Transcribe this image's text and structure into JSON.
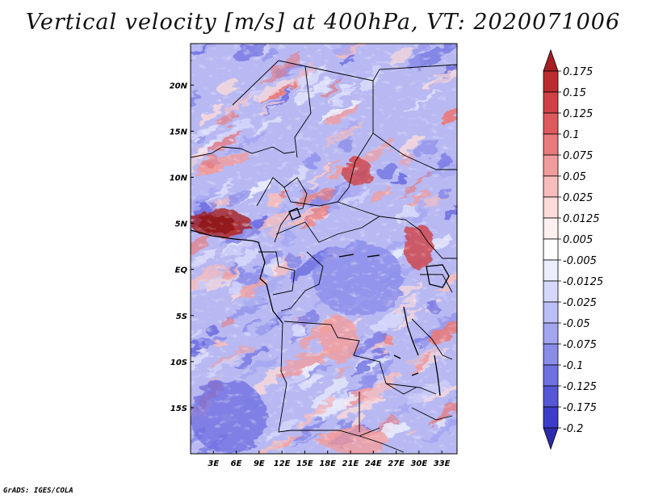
{
  "title": "Vertical velocity [m/s] at 400hPa, VT: 2020071006",
  "credit": "GrADS: IGES/COLA",
  "colors": {
    "positive": "#c0282c",
    "negative": "#3a36c8",
    "neutral": "#ffffff",
    "border": "#000000"
  },
  "chart_data": {
    "type": "heatmap",
    "title": "Vertical velocity [m/s] at 400hPa, VT: 2020071006",
    "units": "m/s",
    "level": "400hPa",
    "valid_time": "2020071006",
    "x_range_lon": [
      0,
      35
    ],
    "y_range_lat": [
      -20,
      24.5
    ],
    "x_ticks": [
      {
        "lon": 3,
        "label": "3E"
      },
      {
        "lon": 6,
        "label": "6E"
      },
      {
        "lon": 9,
        "label": "9E"
      },
      {
        "lon": 12,
        "label": "12E"
      },
      {
        "lon": 15,
        "label": "15E"
      },
      {
        "lon": 18,
        "label": "18E"
      },
      {
        "lon": 21,
        "label": "21E"
      },
      {
        "lon": 24,
        "label": "24E"
      },
      {
        "lon": 27,
        "label": "27E"
      },
      {
        "lon": 30,
        "label": "30E"
      },
      {
        "lon": 33,
        "label": "33E"
      }
    ],
    "y_ticks": [
      {
        "lat": 20,
        "label": "20N"
      },
      {
        "lat": 15,
        "label": "15N"
      },
      {
        "lat": 10,
        "label": "10N"
      },
      {
        "lat": 5,
        "label": "5N"
      },
      {
        "lat": 0,
        "label": "EQ"
      },
      {
        "lat": -5,
        "label": "5S"
      },
      {
        "lat": -10,
        "label": "10S"
      },
      {
        "lat": -15,
        "label": "15S"
      }
    ],
    "colorbar": {
      "labels": [
        "0.175",
        "0.15",
        "0.125",
        "0.1",
        "0.075",
        "0.05",
        "0.025",
        "0.0125",
        "0.005",
        "-0.005",
        "-0.0125",
        "-0.025",
        "-0.05",
        "-0.075",
        "-0.1",
        "-0.125",
        "-0.175",
        "-0.2"
      ],
      "colors": [
        "#a51e22",
        "#bb2c30",
        "#cf4145",
        "#de5a5d",
        "#e97a7b",
        "#f19c9c",
        "#f7bdbc",
        "#fbdad9",
        "#fdf1f0",
        "#ffffff",
        "#eceefd",
        "#d6d8fb",
        "#bcbef7",
        "#a3a5f1",
        "#8a8cea",
        "#7071e1",
        "#5657d6",
        "#3c3dc6",
        "#2d2bab"
      ]
    },
    "features": [
      {
        "name": "strong ascent Gulf of Guinea coast",
        "lon": [
          0,
          8
        ],
        "lat": [
          3.5,
          6.5
        ],
        "max": 0.175
      },
      {
        "name": "ascent band southern Sudan",
        "lon": [
          20,
          24
        ],
        "lat": [
          9,
          12
        ],
        "max": 0.125
      },
      {
        "name": "ascent Lake Victoria region",
        "lon": [
          28,
          32
        ],
        "lat": [
          0,
          5
        ],
        "max": 0.1
      },
      {
        "name": "ascent zone northeast Angola",
        "lon": [
          17,
          22
        ],
        "lat": [
          -10,
          -5
        ],
        "max": 0.05
      },
      {
        "name": "ascent Zimbabwe region",
        "lon": [
          17,
          26
        ],
        "lat": [
          -20,
          -17
        ],
        "max": 0.05
      },
      {
        "name": "broad subsidence Congo basin",
        "lon": [
          16,
          28
        ],
        "lat": [
          -5,
          3
        ],
        "min": -0.05
      },
      {
        "name": "subsidence south Atlantic",
        "lon": [
          0,
          10
        ],
        "lat": [
          -20,
          -12
        ],
        "min": -0.075
      }
    ]
  }
}
